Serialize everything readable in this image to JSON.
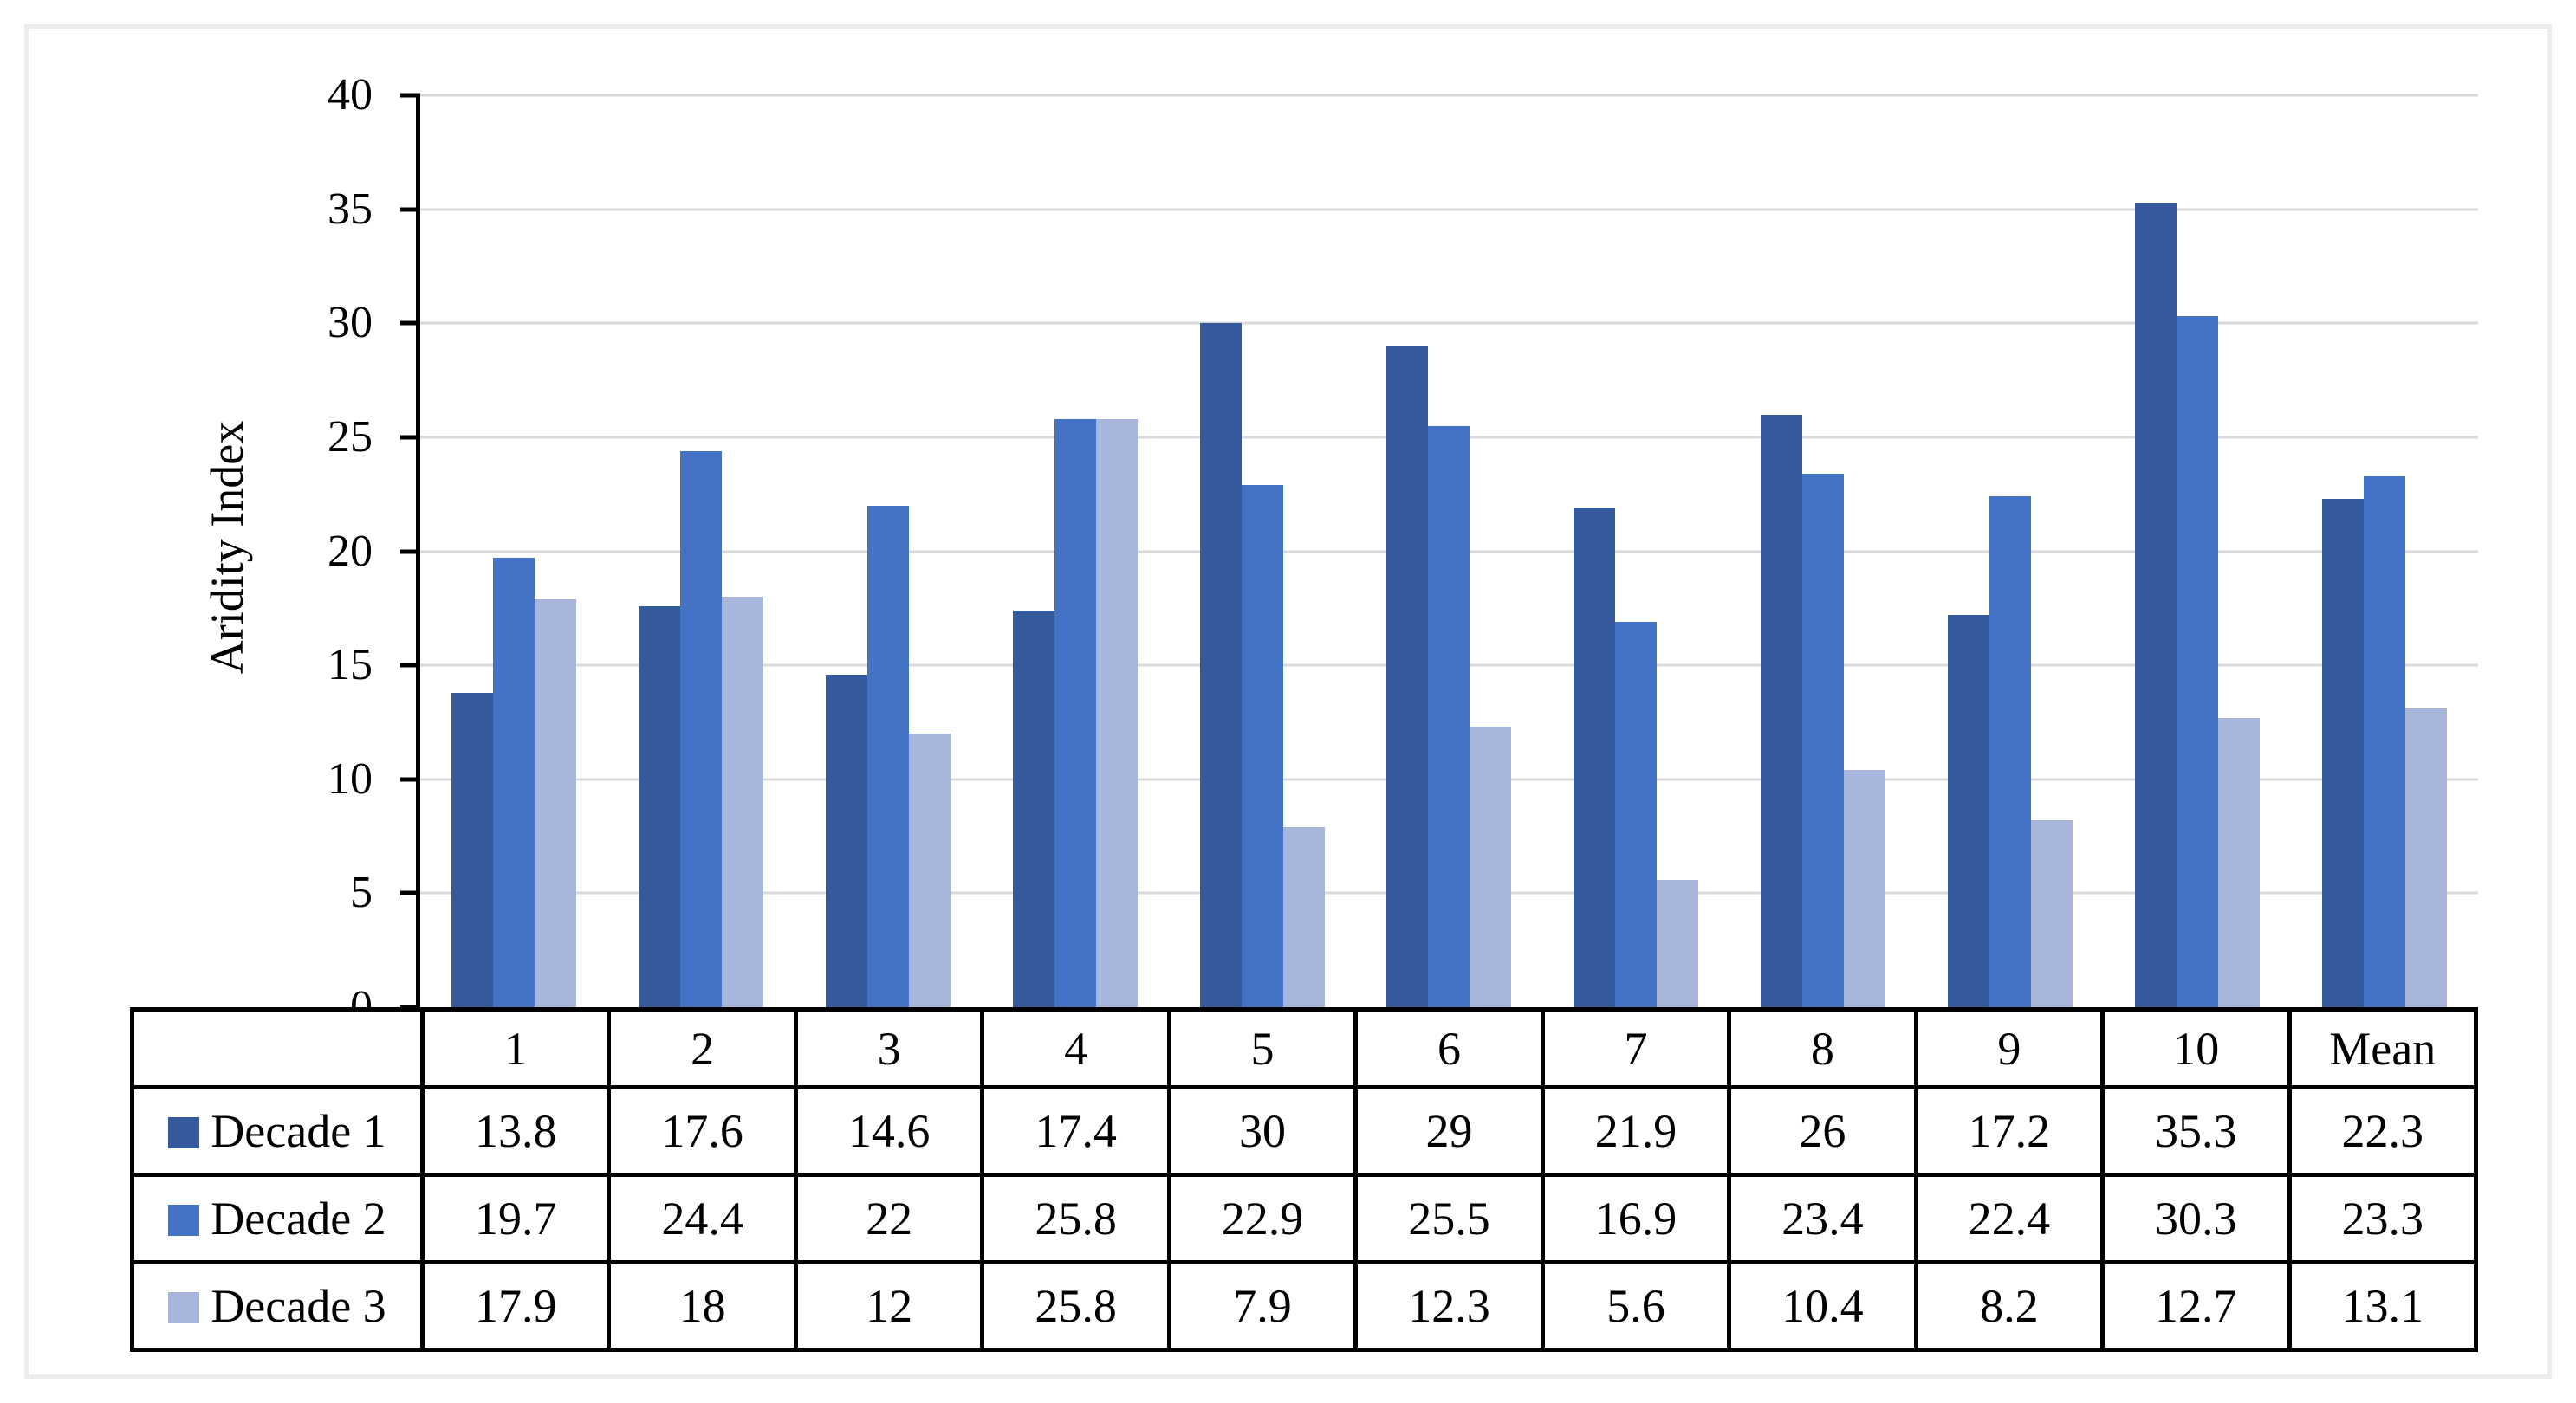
{
  "figure": {
    "background_color": "#ffffff",
    "frame_border_color": "#ededed",
    "axis_color": "#000000",
    "gridline_color": "#d9d9d9"
  },
  "chart_data": {
    "type": "bar",
    "title": "",
    "xlabel": "",
    "ylabel": "Aridity Index",
    "ylim": [
      0,
      40
    ],
    "yticks": [
      40,
      35,
      30,
      25,
      20,
      15,
      10,
      5,
      0
    ],
    "grid": true,
    "legend_position": "data-table-left",
    "categories": [
      "1",
      "2",
      "3",
      "4",
      "5",
      "6",
      "7",
      "8",
      "9",
      "10",
      "Mean"
    ],
    "series": [
      {
        "name": "Decade 1",
        "color": "#34599d",
        "values": [
          13.8,
          17.6,
          14.6,
          17.4,
          30,
          29,
          21.9,
          26,
          17.2,
          35.3,
          22.3
        ]
      },
      {
        "name": "Decade 2",
        "color": "#4472c4",
        "values": [
          19.7,
          24.4,
          22,
          25.8,
          22.9,
          25.5,
          16.9,
          23.4,
          22.4,
          30.3,
          23.3
        ]
      },
      {
        "name": "Decade 3",
        "color": "#a9b6db",
        "values": [
          17.9,
          18,
          12,
          25.8,
          7.9,
          12.3,
          5.6,
          10.4,
          8.2,
          12.7,
          13.1
        ]
      }
    ]
  }
}
